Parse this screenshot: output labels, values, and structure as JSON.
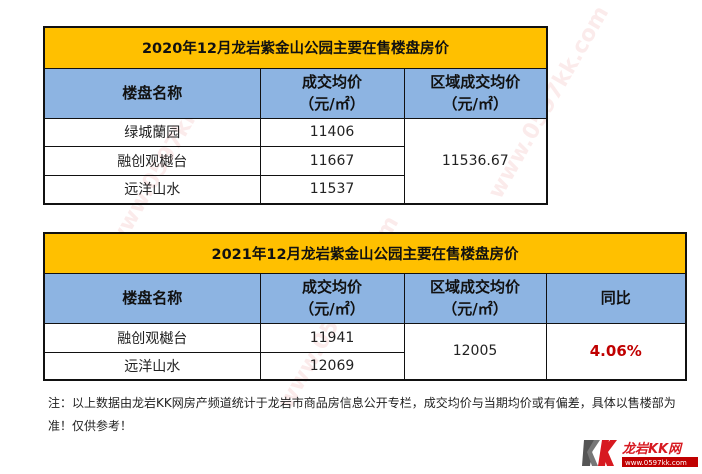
{
  "table_2020": {
    "title": "2020年12月龙岩紫金山公园主要在售楼盘房价",
    "headers": {
      "name": "楼盘名称",
      "price": "成交均价",
      "price_unit": "（元/㎡）",
      "area_price": "区域成交均价",
      "area_unit": "（元/㎡）"
    },
    "rows": [
      {
        "name": "绿城蘭园",
        "price": "11406"
      },
      {
        "name": "融创观樾台",
        "price": "11667"
      },
      {
        "name": "远洋山水",
        "price": "11537"
      }
    ],
    "area_price": "11536.67"
  },
  "table_2021": {
    "title": "2021年12月龙岩紫金山公园主要在售楼盘房价",
    "headers": {
      "name": "楼盘名称",
      "price": "成交均价",
      "price_unit": "（元/㎡）",
      "area_price": "区域成交均价",
      "area_unit": "（元/㎡）",
      "yoy": "同比"
    },
    "rows": [
      {
        "name": "融创观樾台",
        "price": "11941"
      },
      {
        "name": "远洋山水",
        "price": "12069"
      }
    ],
    "area_price": "12005",
    "yoy": "4.06%"
  },
  "note": "注：以上数据由龙岩KK网房产频道统计于龙岩市商品房信息公开专栏，成交均价与当期均价或有偏差，具体以售楼部为准！仅供参考！",
  "logo": {
    "text": "龙岩KK网",
    "url": "www.0597kk.com"
  },
  "watermark": "www.0597kk.com",
  "colors": {
    "title_bg": "#FFC000",
    "header_bg": "#8DB4E2",
    "yoy": "#C00000"
  }
}
